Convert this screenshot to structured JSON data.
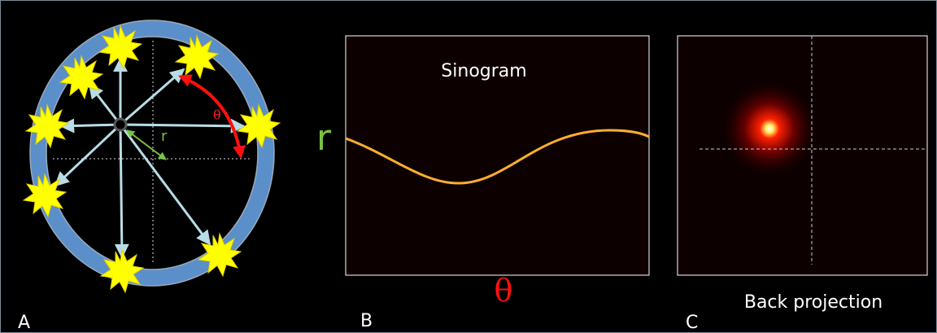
{
  "panels": [
    {
      "letter": "A",
      "r_label": "r",
      "theta_label": "θ"
    },
    {
      "letter": "B",
      "title": "Sinogram",
      "y_label": "r",
      "x_label": "θ"
    },
    {
      "letter": "C",
      "title": "Back projection"
    }
  ]
}
